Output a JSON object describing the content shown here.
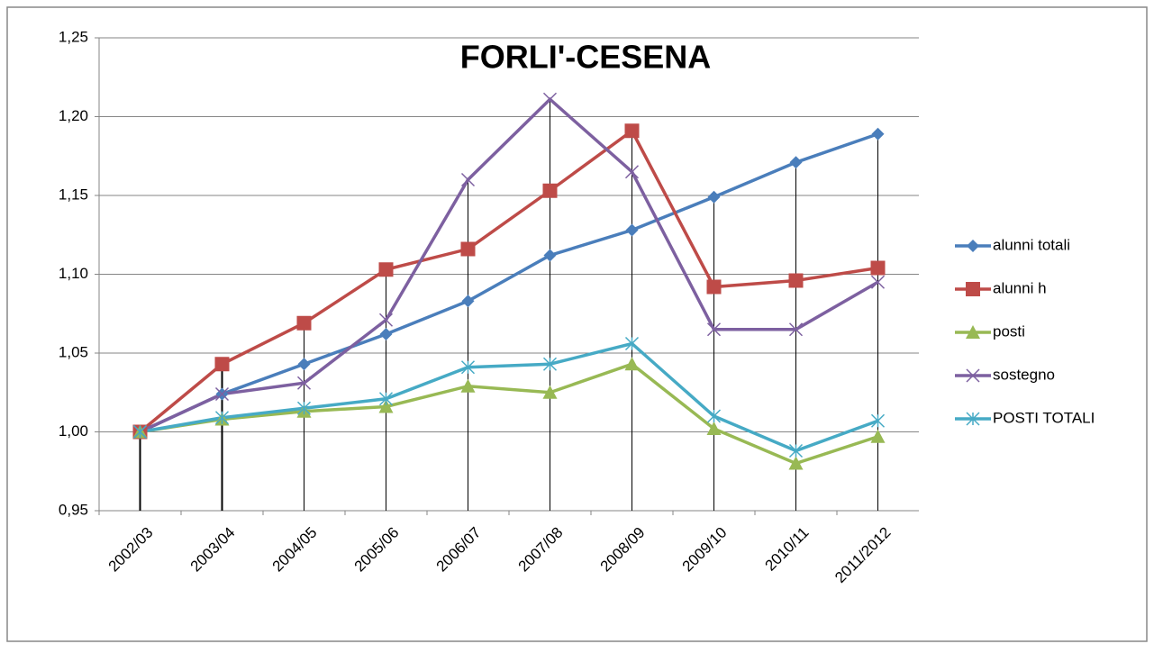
{
  "chart_data": {
    "type": "line",
    "title": "FORLI'-CESENA",
    "categories": [
      "2002/03",
      "2003/04",
      "2004/05",
      "2005/06",
      "2006/07",
      "2007/08",
      "2008/09",
      "2009/10",
      "2010/11",
      "2011/2012"
    ],
    "series": [
      {
        "name": "alunni totali",
        "color": "#4a7ebb",
        "marker": "diamond",
        "values": [
          1.0,
          1.024,
          1.043,
          1.062,
          1.083,
          1.112,
          1.128,
          1.149,
          1.171,
          1.189
        ]
      },
      {
        "name": "alunni h",
        "color": "#be4b48",
        "marker": "square",
        "values": [
          1.0,
          1.043,
          1.069,
          1.103,
          1.116,
          1.153,
          1.191,
          1.092,
          1.096,
          1.104
        ]
      },
      {
        "name": "posti",
        "color": "#98b954",
        "marker": "triangle",
        "values": [
          1.0,
          1.008,
          1.013,
          1.016,
          1.029,
          1.025,
          1.043,
          1.002,
          0.98,
          0.997
        ]
      },
      {
        "name": "sostegno",
        "color": "#7d60a0",
        "marker": "x",
        "values": [
          1.0,
          1.024,
          1.031,
          1.071,
          1.16,
          1.211,
          1.165,
          1.065,
          1.065,
          1.095
        ]
      },
      {
        "name": "POSTI TOTALI",
        "color": "#46aac5",
        "marker": "star",
        "values": [
          1.0,
          1.009,
          1.015,
          1.021,
          1.041,
          1.043,
          1.056,
          1.01,
          0.988,
          1.007
        ]
      }
    ],
    "ylim": [
      0.95,
      1.25
    ],
    "yticks": [
      {
        "value": 0.95,
        "label": "0,95"
      },
      {
        "value": 1.0,
        "label": "1,00"
      },
      {
        "value": 1.05,
        "label": "1,05"
      },
      {
        "value": 1.1,
        "label": "1,10"
      },
      {
        "value": 1.15,
        "label": "1,15"
      },
      {
        "value": 1.2,
        "label": "1,20"
      },
      {
        "value": 1.25,
        "label": "1,25"
      }
    ],
    "grid": true,
    "drop_lines": true,
    "legend": "right"
  }
}
